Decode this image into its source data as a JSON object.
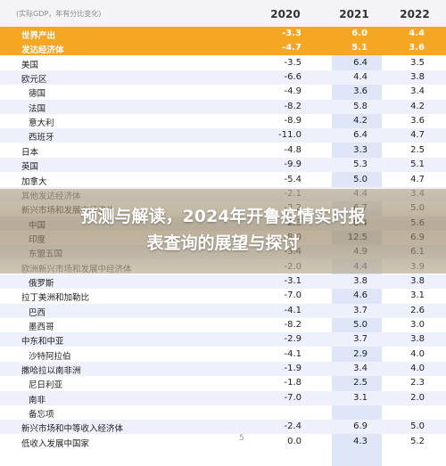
{
  "table": {
    "caption": "(实际GDP，年有分比变化)",
    "years": [
      "2020",
      "2021",
      "2022"
    ],
    "rows": [
      {
        "label": "世界产出",
        "v": [
          "-3.3",
          "6.0",
          "4.4"
        ],
        "style": "hl"
      },
      {
        "label": "发达经济体",
        "v": [
          "-4.7",
          "5.1",
          "3.6"
        ],
        "style": "hl2"
      },
      {
        "label": "美国",
        "v": [
          "-3.5",
          "6.4",
          "3.5"
        ]
      },
      {
        "label": "欧元区",
        "v": [
          "-6.6",
          "4.4",
          "3.8"
        ]
      },
      {
        "label": "德国",
        "v": [
          "-4.9",
          "3.6",
          "3.4"
        ],
        "indent": true
      },
      {
        "label": "法国",
        "v": [
          "-8.2",
          "5.8",
          "4.2"
        ],
        "indent": true
      },
      {
        "label": "意大利",
        "v": [
          "-8.9",
          "4.2",
          "3.6"
        ],
        "indent": true
      },
      {
        "label": "西班牙",
        "v": [
          "-11.0",
          "6.4",
          "4.7"
        ],
        "indent": true
      },
      {
        "label": "日本",
        "v": [
          "-4.8",
          "3.3",
          "2.5"
        ]
      },
      {
        "label": "英国",
        "v": [
          "-9.9",
          "5.3",
          "5.1"
        ]
      },
      {
        "label": "加拿大",
        "v": [
          "-5.4",
          "5.0",
          "4.7"
        ]
      },
      {
        "label": "其他发达经济体",
        "v": [
          "-2.1",
          "4.4",
          "3.4"
        ]
      },
      {
        "label": "新兴市场和发展中经济体",
        "v": [
          "-2.2",
          "6.7",
          "5.0"
        ]
      },
      {
        "label": "中国",
        "v": [
          "2.3",
          "8.4",
          "5.6"
        ],
        "indent": true
      },
      {
        "label": "印度",
        "v": [
          "-8.0",
          "12.5",
          "6.9"
        ],
        "indent": true
      },
      {
        "label": "东盟五国",
        "v": [
          "-3.4",
          "4.9",
          "6.1"
        ],
        "indent": true
      },
      {
        "label": "欧洲新兴市场和发展中经济体",
        "v": [
          "-2.0",
          "4.4",
          "3.9"
        ]
      },
      {
        "label": "俄罗斯",
        "v": [
          "-3.1",
          "3.8",
          "3.8"
        ],
        "indent": true
      },
      {
        "label": "拉丁美洲和加勒比",
        "v": [
          "-7.0",
          "4.6",
          "3.1"
        ]
      },
      {
        "label": "巴西",
        "v": [
          "-4.1",
          "3.7",
          "2.6"
        ],
        "indent": true
      },
      {
        "label": "墨西哥",
        "v": [
          "-8.2",
          "5.0",
          "3.0"
        ],
        "indent": true
      },
      {
        "label": "中东和中亚",
        "v": [
          "-2.9",
          "3.7",
          "3.8"
        ]
      },
      {
        "label": "沙特阿拉伯",
        "v": [
          "-4.1",
          "2.9",
          "4.0"
        ],
        "indent": true
      },
      {
        "label": "撒哈拉以南非洲",
        "v": [
          "-1.9",
          "3.4",
          "4.0"
        ]
      },
      {
        "label": "尼日利亚",
        "v": [
          "-1.8",
          "2.5",
          "2.3"
        ],
        "indent": true
      },
      {
        "label": "南非",
        "v": [
          "-7.0",
          "3.1",
          "2.0"
        ],
        "indent": true
      },
      {
        "label": "备忘项",
        "v": [
          "",
          "",
          ""
        ],
        "indent": true
      },
      {
        "label": "新兴市场和中等收入经济体",
        "v": [
          "-2.4",
          "6.9",
          "5.0"
        ]
      },
      {
        "label": "低收入发展中国家",
        "v": [
          "0.0",
          "4.3",
          "5.2"
        ]
      }
    ],
    "note": "5"
  },
  "headline": {
    "line1": "预测与解读，2024年开鲁疫情实时报",
    "line2": "表查询的展望与探讨"
  }
}
